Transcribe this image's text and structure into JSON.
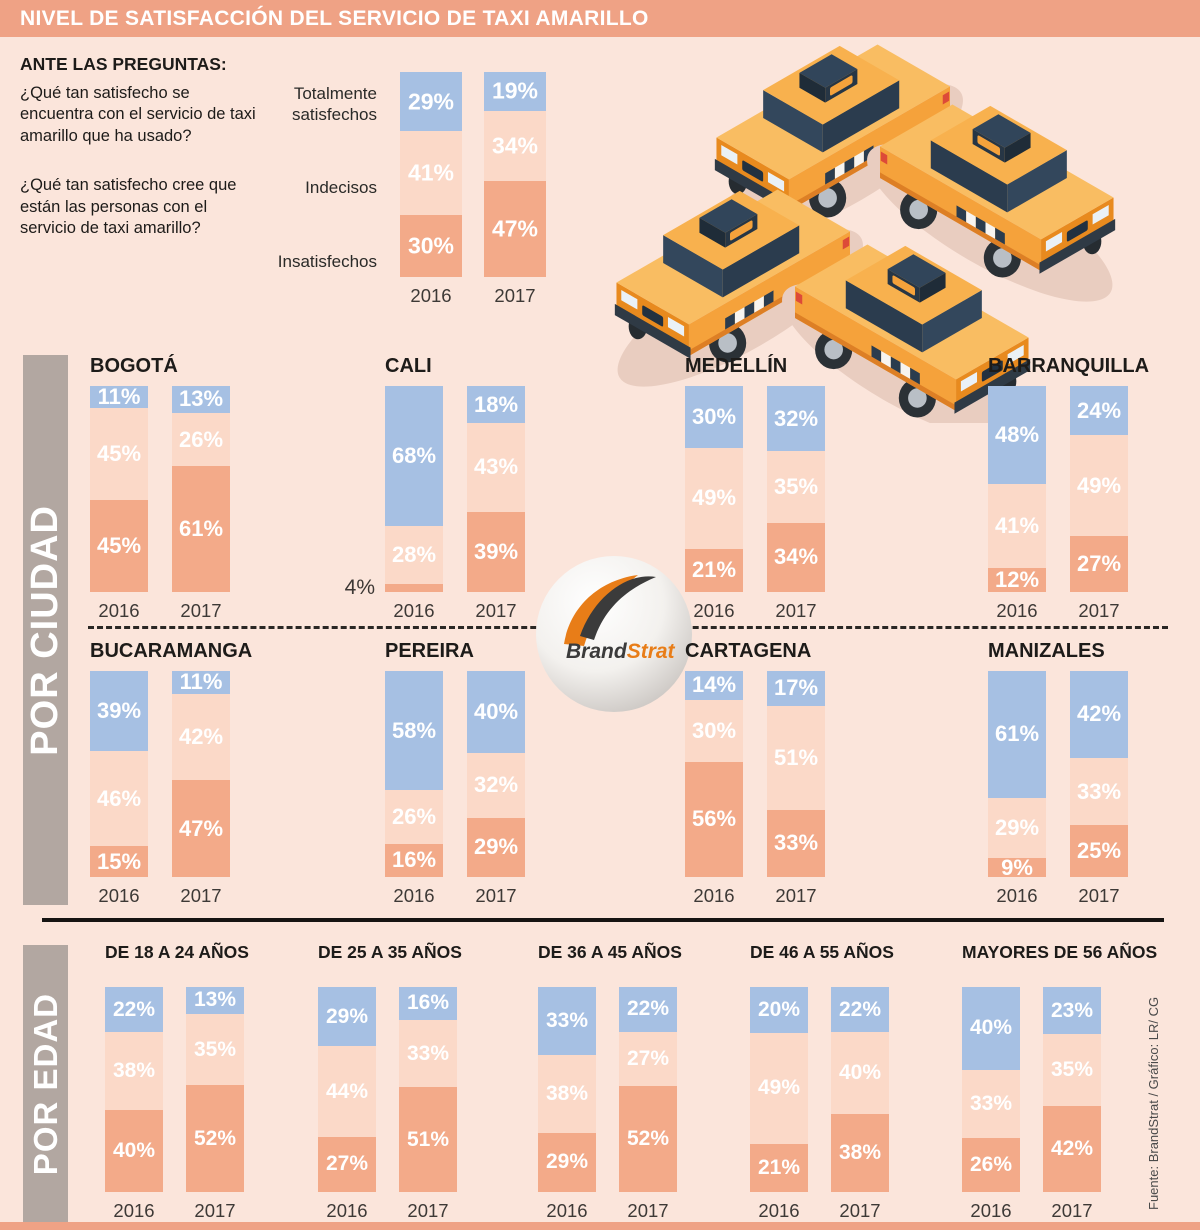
{
  "header": {
    "title": "NIVEL DE SATISFACCIÓN DEL SERVICIO DE TAXI AMARILLO"
  },
  "intro": {
    "heading": "ANTE LAS PREGUNTAS:",
    "question1": "¿Qué tan satisfecho se encuentra con el servicio de taxi amarillo que ha usado?",
    "question2": "¿Qué tan satisfecho cree que están las personas con el servicio de taxi amarillo?"
  },
  "legend": {
    "satisfied": "Totalmente satisfechos",
    "undecided": "Indecisos",
    "unsatisfied": "Insatisfechos"
  },
  "sections": {
    "city": "POR CIUDAD",
    "age": "POR EDAD"
  },
  "source": "Fuente: BrandStrat / Gráfico: LR/ CG",
  "logo": {
    "brand": "Brand",
    "strat": "Strat"
  },
  "colors": {
    "background": "#fbe5db",
    "accent_salmon": "#efa285",
    "satisfied_blue": "#a6c0e3",
    "undecided_pink": "#fbd9c8",
    "unsatisfied_orange": "#f3aa89",
    "sidebar_gray": "#b2a7a1"
  },
  "chart_data": {
    "type": "bar",
    "stacked": true,
    "unit": "%",
    "series_names": [
      "Totalmente satisfechos",
      "Indecisos",
      "Insatisfechos"
    ],
    "years": [
      "2016",
      "2017"
    ],
    "overall": {
      "values": {
        "2016": [
          29,
          41,
          30
        ],
        "2017": [
          19,
          34,
          47
        ]
      }
    },
    "by_city": [
      {
        "name": "BOGOTÁ",
        "values": {
          "2016": [
            11,
            45,
            45
          ],
          "2017": [
            13,
            26,
            61
          ]
        }
      },
      {
        "name": "CALI",
        "values": {
          "2016": [
            68,
            28,
            4
          ],
          "2017": [
            18,
            43,
            39
          ]
        }
      },
      {
        "name": "MEDELLÍN",
        "values": {
          "2016": [
            30,
            49,
            21
          ],
          "2017": [
            32,
            35,
            34
          ]
        }
      },
      {
        "name": "BARRANQUILLA",
        "values": {
          "2016": [
            48,
            41,
            12
          ],
          "2017": [
            24,
            49,
            27
          ]
        }
      },
      {
        "name": "BUCARAMANGA",
        "values": {
          "2016": [
            39,
            46,
            15
          ],
          "2017": [
            11,
            42,
            47
          ]
        }
      },
      {
        "name": "PEREIRA",
        "values": {
          "2016": [
            58,
            26,
            16
          ],
          "2017": [
            40,
            32,
            29
          ]
        }
      },
      {
        "name": "CARTAGENA",
        "values": {
          "2016": [
            14,
            30,
            56
          ],
          "2017": [
            17,
            51,
            33
          ]
        }
      },
      {
        "name": "MANIZALES",
        "values": {
          "2016": [
            61,
            29,
            9
          ],
          "2017": [
            42,
            33,
            25
          ]
        }
      }
    ],
    "by_age": [
      {
        "name": "DE 18 A 24 AÑOS",
        "values": {
          "2016": [
            22,
            38,
            40
          ],
          "2017": [
            13,
            35,
            52
          ]
        }
      },
      {
        "name": "DE 25 A 35 AÑOS",
        "values": {
          "2016": [
            29,
            44,
            27
          ],
          "2017": [
            16,
            33,
            51
          ]
        }
      },
      {
        "name": "DE 36 A 45 AÑOS",
        "values": {
          "2016": [
            33,
            38,
            29
          ],
          "2017": [
            22,
            27,
            52
          ]
        }
      },
      {
        "name": "DE 46 A 55 AÑOS",
        "values": {
          "2016": [
            20,
            49,
            21
          ],
          "2017": [
            22,
            40,
            38
          ]
        }
      },
      {
        "name": "MAYORES DE 56 AÑOS",
        "values": {
          "2016": [
            40,
            33,
            26
          ],
          "2017": [
            23,
            35,
            42
          ]
        }
      }
    ]
  }
}
